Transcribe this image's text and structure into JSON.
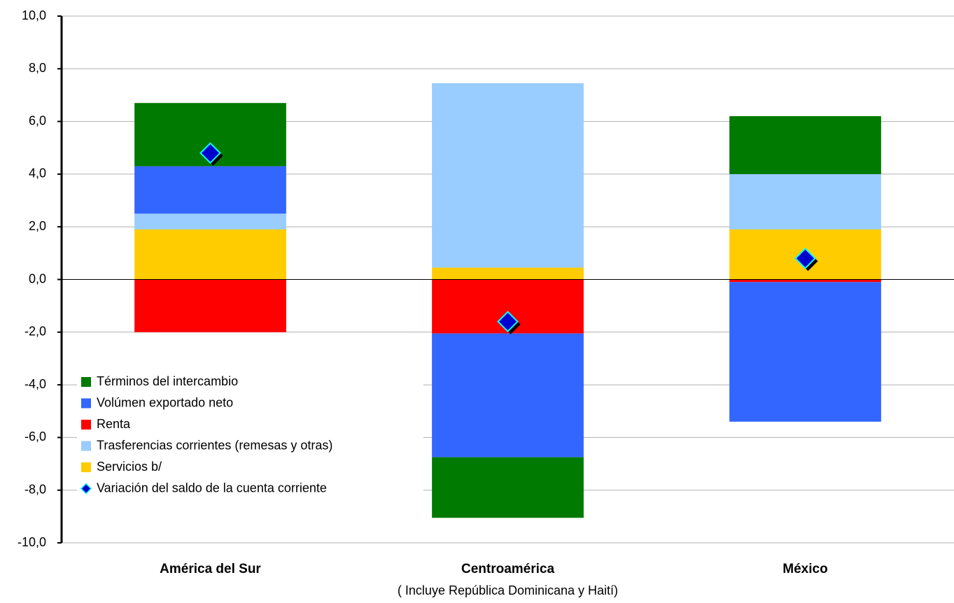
{
  "chart_data": {
    "type": "bar",
    "categories": [
      "América del Sur",
      "Centroamérica",
      "México"
    ],
    "category_sublabels": [
      null,
      "( Incluye República Dominicana y Haití)",
      null
    ],
    "series": [
      {
        "name": "Términos del intercambio",
        "color": "#007a00",
        "values": [
          2.4,
          -2.3,
          2.2
        ]
      },
      {
        "name": "Volúmen exportado neto",
        "color": "#3366ff",
        "values": [
          1.8,
          -4.7,
          -5.3
        ]
      },
      {
        "name": "Renta",
        "color": "#ff0000",
        "values": [
          -2.0,
          -2.05,
          -0.1
        ]
      },
      {
        "name": "Trasferencias corrientes (remesas y otras)",
        "color": "#99ccff",
        "values": [
          0.6,
          7.0,
          2.1
        ]
      },
      {
        "name": "Servicios b/",
        "color": "#ffcc00",
        "values": [
          1.9,
          0.45,
          1.9
        ]
      },
      {
        "name": "Variación del saldo de la cuenta corriente",
        "color": "#0000cc",
        "type": "scatter",
        "values": [
          4.8,
          -1.6,
          0.8
        ]
      }
    ],
    "ylim": [
      -10,
      10
    ],
    "yticks": [
      {
        "value": -10,
        "label": "-10,0"
      },
      {
        "value": -8,
        "label": "-8,0"
      },
      {
        "value": -6,
        "label": "-6,0"
      },
      {
        "value": -4,
        "label": "-4,0"
      },
      {
        "value": -2,
        "label": "-2,0"
      },
      {
        "value": 0,
        "label": "0,0"
      },
      {
        "value": 2,
        "label": "2,0"
      },
      {
        "value": 4,
        "label": "4,0"
      },
      {
        "value": 6,
        "label": "6,0"
      },
      {
        "value": 8,
        "label": "8,0"
      },
      {
        "value": 10,
        "label": "10,0"
      }
    ],
    "grid": true,
    "legend": "lower-left"
  }
}
